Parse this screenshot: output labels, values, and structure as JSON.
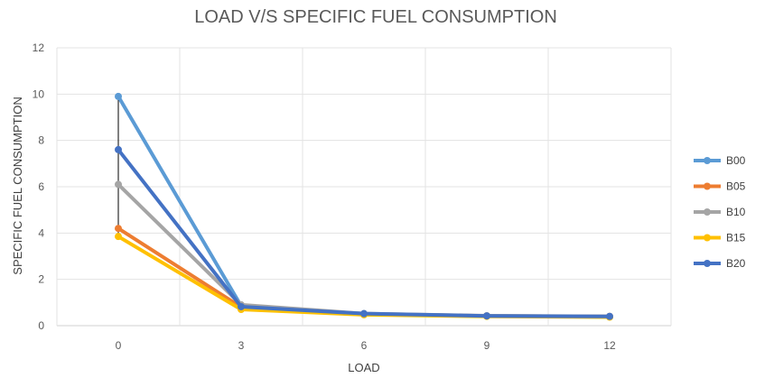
{
  "chart_data": {
    "type": "line",
    "title": "LOAD V/S SPECIFIC FUEL CONSUMPTION",
    "xlabel": "LOAD",
    "ylabel": "SPECIFIC FUEL CONSUMPTION",
    "x": [
      0,
      3,
      6,
      9,
      12
    ],
    "ylim": [
      0,
      12
    ],
    "yticks": [
      0,
      2,
      4,
      6,
      8,
      10,
      12
    ],
    "grid": true,
    "legend_position": "right",
    "series": [
      {
        "name": "B00",
        "color": "#5b9bd5",
        "values": [
          9.9,
          0.85,
          0.5,
          0.42,
          0.38
        ]
      },
      {
        "name": "B05",
        "color": "#ed7d31",
        "values": [
          4.2,
          0.8,
          0.5,
          0.42,
          0.4
        ]
      },
      {
        "name": "B10",
        "color": "#a5a5a5",
        "values": [
          6.1,
          0.9,
          0.52,
          0.43,
          0.4
        ]
      },
      {
        "name": "B15",
        "color": "#ffc000",
        "values": [
          3.85,
          0.7,
          0.47,
          0.4,
          0.37
        ]
      },
      {
        "name": "B20",
        "color": "#4472c4",
        "values": [
          7.6,
          0.82,
          0.52,
          0.42,
          0.4
        ]
      }
    ]
  }
}
